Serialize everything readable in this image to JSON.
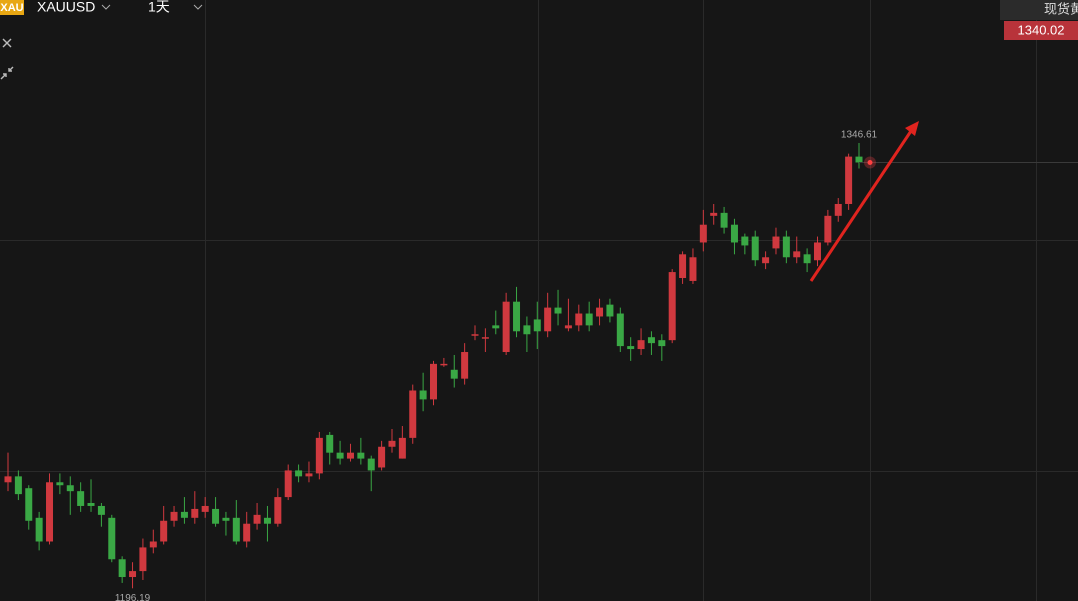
{
  "header": {
    "icon": "XAU",
    "symbol": "XAUUSD",
    "period": "1天",
    "price_title": "现货黄"
  },
  "chart_data": {
    "type": "candlestick",
    "up_color": "#d0393f",
    "down_color": "#3aa845",
    "ylim": [
      1191.9,
      1394.9
    ],
    "open": [
      1232,
      1234,
      1230,
      1220,
      1212,
      1232,
      1231,
      1229,
      1225,
      1224,
      1220,
      1206,
      1200,
      1202,
      1210,
      1212,
      1219,
      1222,
      1220,
      1222,
      1223,
      1220,
      1220,
      1212,
      1218,
      1220,
      1218,
      1227,
      1236,
      1234,
      1235,
      1248,
      1242,
      1240,
      1242,
      1240,
      1237,
      1244,
      1240,
      1247,
      1263,
      1260,
      1272,
      1270,
      1267,
      1282,
      1281,
      1285,
      1276,
      1293,
      1285,
      1287,
      1283,
      1291,
      1284,
      1285,
      1289,
      1288,
      1292,
      1289,
      1278,
      1277,
      1281,
      1280,
      1280,
      1301,
      1300,
      1313,
      1322,
      1323,
      1319,
      1315,
      1315,
      1306,
      1311,
      1315,
      1308,
      1309,
      1307,
      1313,
      1322,
      1326,
      1342
    ],
    "high": [
      1242,
      1236,
      1231,
      1222,
      1235,
      1235,
      1234,
      1232,
      1233,
      1225,
      1221,
      1207,
      1205,
      1213,
      1216,
      1224,
      1224,
      1227,
      1229,
      1227,
      1227,
      1222,
      1226,
      1222,
      1225,
      1224,
      1230,
      1238,
      1238,
      1239,
      1249,
      1249,
      1246,
      1245,
      1247,
      1241,
      1246,
      1250,
      1251,
      1265,
      1269,
      1273,
      1274,
      1275,
      1279,
      1285,
      1284,
      1290,
      1296,
      1298,
      1288,
      1293,
      1296,
      1297,
      1294,
      1292,
      1293,
      1294,
      1294,
      1291,
      1281,
      1284,
      1283,
      1282,
      1304,
      1310,
      1311,
      1324,
      1326,
      1325,
      1321,
      1316,
      1317,
      1310,
      1318,
      1317,
      1315,
      1311,
      1315,
      1324,
      1328,
      1343,
      1346.61
    ],
    "low": [
      1229,
      1226,
      1216,
      1209,
      1211,
      1228,
      1221,
      1222,
      1222,
      1217,
      1205,
      1198,
      1196.19,
      1199,
      1208,
      1211,
      1217,
      1218,
      1218,
      1220,
      1217,
      1214,
      1211,
      1210,
      1216,
      1212,
      1217,
      1226,
      1232,
      1232,
      1233,
      1238,
      1238,
      1239,
      1238,
      1229,
      1236,
      1242,
      1240,
      1245,
      1256,
      1258,
      1271,
      1264,
      1265,
      1280,
      1276,
      1282,
      1275,
      1281,
      1276,
      1277,
      1281,
      1285,
      1283,
      1283,
      1283,
      1285,
      1286,
      1276,
      1273,
      1275,
      1275,
      1273,
      1279,
      1299,
      1299,
      1310,
      1319,
      1316,
      1309,
      1309,
      1305,
      1304,
      1309,
      1306,
      1306,
      1303,
      1305,
      1312,
      1320,
      1324,
      1338
    ],
    "close": [
      1234,
      1228,
      1219,
      1212,
      1232,
      1231,
      1229,
      1224,
      1224,
      1221,
      1206,
      1200,
      1202,
      1210,
      1212,
      1219,
      1222,
      1220,
      1223,
      1224,
      1218,
      1219,
      1212,
      1218,
      1221,
      1218,
      1227,
      1236,
      1234,
      1235,
      1247,
      1242,
      1240,
      1242,
      1240,
      1236,
      1244,
      1246,
      1247,
      1263,
      1260,
      1272,
      1272,
      1267,
      1276,
      1282,
      1281,
      1284,
      1293,
      1283,
      1282,
      1283,
      1291,
      1289,
      1285,
      1289,
      1285,
      1291,
      1288,
      1278,
      1277,
      1280,
      1279,
      1278,
      1303,
      1309,
      1308,
      1319,
      1323,
      1318,
      1313,
      1312,
      1307,
      1308,
      1315,
      1308,
      1310,
      1306,
      1313,
      1322,
      1326,
      1342,
      1340.02
    ]
  }
}
